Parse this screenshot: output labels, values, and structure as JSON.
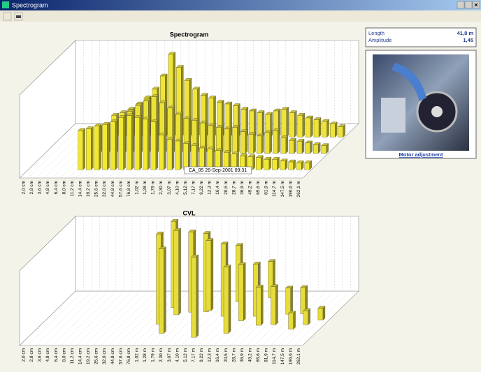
{
  "window": {
    "title": "Spectrogram"
  },
  "info": {
    "rows": [
      {
        "label": "Length",
        "value": "41,8 m"
      },
      {
        "label": "Amplitude",
        "value": "1,45"
      }
    ]
  },
  "photo": {
    "caption": "Motor adjustment"
  },
  "chart_data": [
    {
      "type": "bar3d",
      "title": "Spectrogram",
      "annotation": "CA_05  26-Sep-2001 09:31",
      "categories": [
        "2,0 cm",
        "2,8 cm",
        "3,6 cm",
        "4,8 cm",
        "6,4 cm",
        "8,0 cm",
        "11,2 cm",
        "14,4 cm",
        "19,2 cm",
        "25,6 cm",
        "32,0 cm",
        "44,8 cm",
        "57,6 cm",
        "76,8 cm",
        "1,02 m",
        "1,28 m",
        "1,79 m",
        "2,30 m",
        "3,07 m",
        "4,10 m",
        "5,12 m",
        "7,17 m",
        "9,22 m",
        "12,3 m",
        "16,4 m",
        "20,5 m",
        "28,7 m",
        "36,9 m",
        "49,2 m",
        "65,6 m",
        "81,9 m",
        "114,7 m",
        "147,5 m",
        "196,6 m",
        "262,1 m"
      ],
      "series": [
        {
          "color": "#efe43a",
          "values": [
            null,
            null,
            null,
            null,
            null,
            null,
            25,
            28,
            32,
            38,
            45,
            55,
            70,
            95,
            80,
            65,
            55,
            48,
            45,
            40,
            38,
            36,
            32,
            30,
            28,
            26,
            30,
            32,
            28,
            25,
            22,
            20,
            18,
            15,
            12
          ]
        },
        {
          "color": "#ece236",
          "values": [
            null,
            null,
            null,
            null,
            null,
            null,
            30,
            32,
            35,
            40,
            48,
            55,
            60,
            65,
            58,
            52,
            45,
            40,
            38,
            35,
            32,
            30,
            28,
            30,
            25,
            22,
            20,
            24,
            26,
            18,
            15,
            14,
            12,
            10,
            9
          ]
        },
        {
          "color": "#f2e832",
          "values": [
            null,
            null,
            null,
            null,
            null,
            null,
            45,
            47,
            50,
            52,
            55,
            60,
            62,
            60,
            58,
            55,
            40,
            35,
            33,
            30,
            28,
            25,
            24,
            22,
            20,
            18,
            16,
            15,
            14,
            12,
            12,
            10,
            9,
            8,
            8
          ]
        }
      ]
    },
    {
      "type": "range3d",
      "title": "CVL",
      "color": "#e6dc3a",
      "categories": [
        "2,0 cm",
        "2,8 cm",
        "3,6 cm",
        "4,8 cm",
        "6,4 cm",
        "8,0 cm",
        "11,2 cm",
        "14,4 cm",
        "19,2 cm",
        "25,6 cm",
        "32,0 cm",
        "44,8 cm",
        "57,6 cm",
        "76,8 cm",
        "1,02 m",
        "1,28 m",
        "1,79 m",
        "2,30 m",
        "3,07 m",
        "4,10 m",
        "5,12 m",
        "7,17 m",
        "9,22 m",
        "12,3 m",
        "16,4 m",
        "20,5 m",
        "28,7 m",
        "36,9 m",
        "49,2 m",
        "65,6 m",
        "81,9 m",
        "114,7 m",
        "147,5 m",
        "196,6 m",
        "262,1 m"
      ],
      "low": [
        null,
        null,
        null,
        null,
        null,
        null,
        null,
        null,
        null,
        null,
        null,
        null,
        null,
        null,
        0,
        5,
        2,
        8,
        6,
        3,
        0,
        10,
        4,
        8,
        2,
        5,
        4,
        10,
        6,
        3,
        5,
        2,
        4,
        3,
        2
      ],
      "high": [
        null,
        null,
        null,
        null,
        null,
        null,
        null,
        null,
        null,
        null,
        null,
        null,
        null,
        null,
        45,
        48,
        44,
        50,
        46,
        42,
        40,
        45,
        40,
        36,
        35,
        33,
        30,
        28,
        25,
        22,
        18,
        15,
        12,
        10,
        8
      ]
    }
  ]
}
